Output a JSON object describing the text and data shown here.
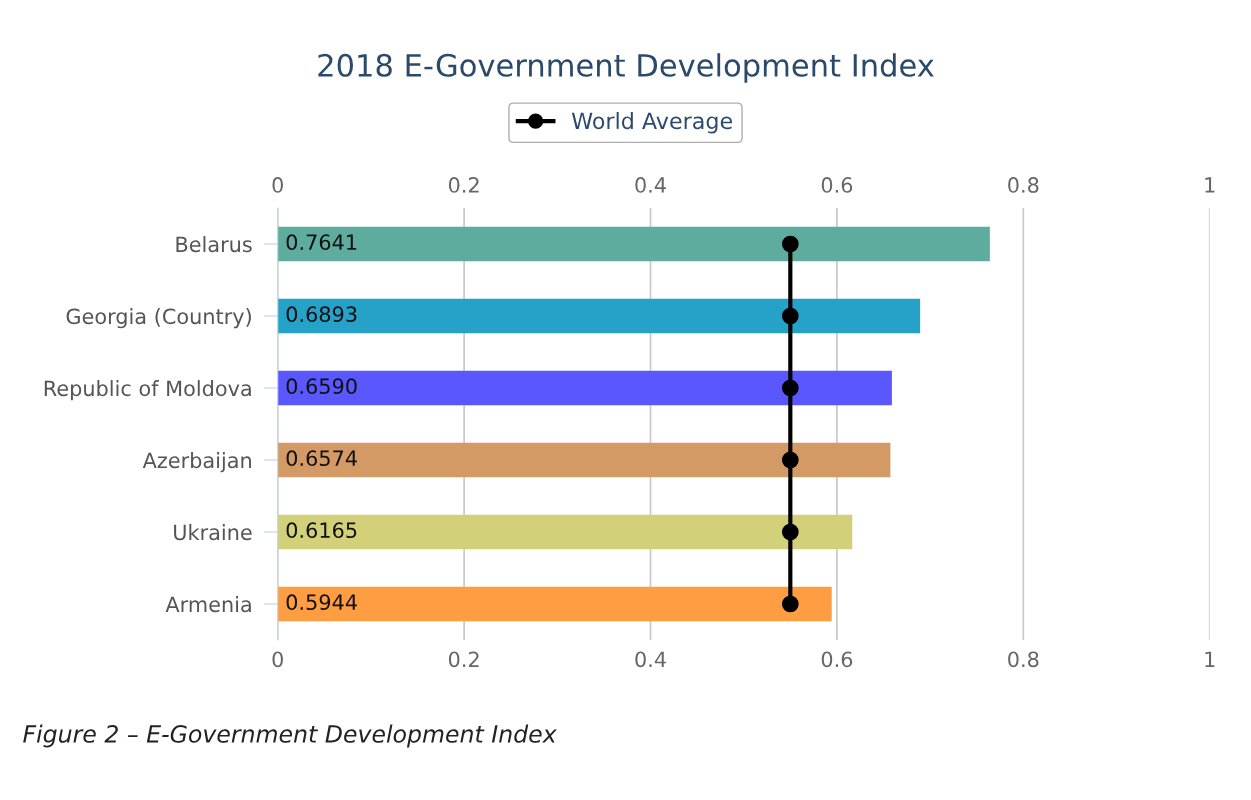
{
  "chart_data": {
    "type": "bar",
    "orientation": "horizontal",
    "title": "2018 E-Government Development Index",
    "categories": [
      "Belarus",
      "Georgia (Country)",
      "Republic of Moldova",
      "Azerbaijan",
      "Ukraine",
      "Armenia"
    ],
    "values": [
      0.7641,
      0.6893,
      0.659,
      0.6574,
      0.6165,
      0.5944
    ],
    "colors": [
      "#5eac9e",
      "#26a2c9",
      "#5b57ff",
      "#d49a66",
      "#d2d17a",
      "#ff9d42"
    ],
    "value_labels": [
      "0.7641",
      "0.6893",
      "0.6590",
      "0.6574",
      "0.6165",
      "0.5944"
    ],
    "series": [
      {
        "name": "World Average",
        "type": "line",
        "color": "#000000",
        "values": [
          0.55,
          0.55,
          0.55,
          0.55,
          0.55,
          0.55
        ]
      }
    ],
    "marker": "circle",
    "line_style": "solid",
    "xlim": [
      0,
      1
    ],
    "xticks": [
      0,
      0.2,
      0.4,
      0.6,
      0.8,
      1
    ],
    "x2lim": [
      0,
      1
    ],
    "x2ticks": [
      0,
      0.2,
      0.4,
      0.6,
      0.8,
      1
    ],
    "grid": "x",
    "legend": "top",
    "annotations": [
      "Figure 2 – E-Government Development Index"
    ]
  }
}
